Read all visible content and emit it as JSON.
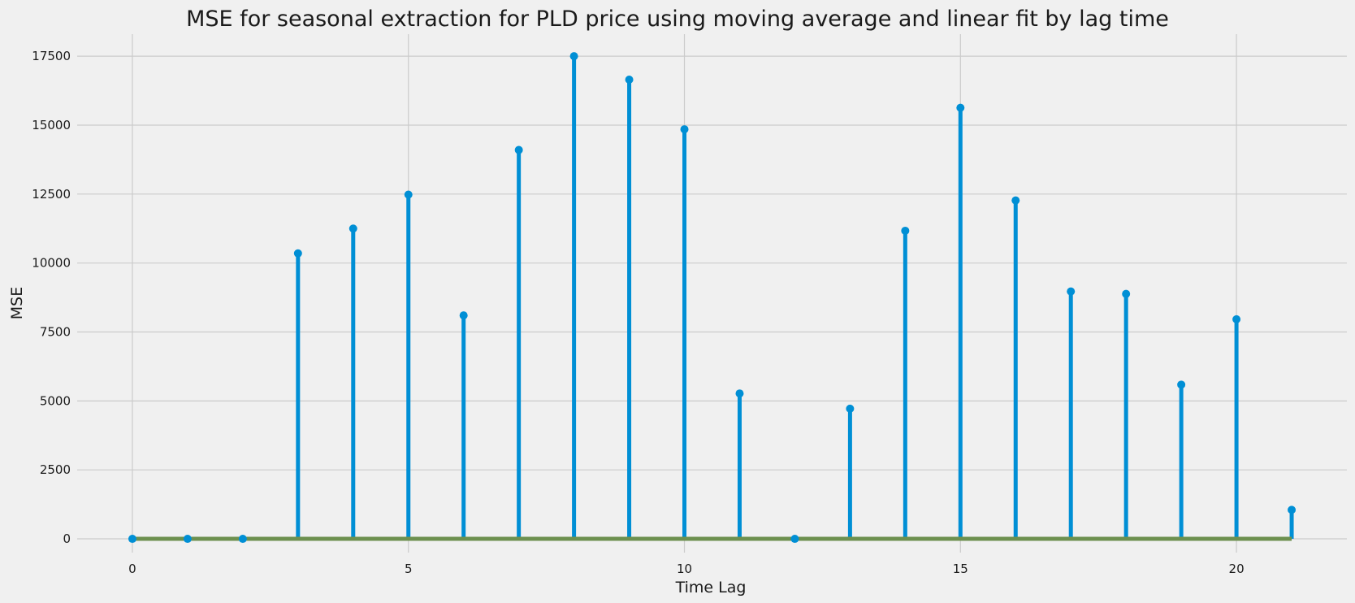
{
  "chart_data": {
    "type": "stem",
    "title": "MSE for seasonal extraction for PLD price using moving average and linear fit by lag time",
    "xlabel": "Time Lag",
    "ylabel": "MSE",
    "x": [
      0,
      1,
      2,
      3,
      4,
      5,
      6,
      7,
      8,
      9,
      10,
      11,
      12,
      13,
      14,
      15,
      16,
      17,
      18,
      19,
      20,
      21
    ],
    "values": [
      0,
      0,
      0,
      10350,
      11250,
      12480,
      8100,
      14100,
      17500,
      16650,
      14850,
      5270,
      0,
      4720,
      11170,
      15630,
      12270,
      8970,
      8880,
      5590,
      7960,
      1050
    ],
    "xlim": [
      -1,
      22
    ],
    "ylim": [
      -500,
      18300
    ],
    "xticks": [
      0,
      5,
      10,
      15,
      20
    ],
    "yticks": [
      0,
      2500,
      5000,
      7500,
      10000,
      12500,
      15000,
      17500
    ],
    "grid": true,
    "colors": {
      "stem": "#008fd5",
      "baseline": "#6d904f",
      "background": "#f0f0f0",
      "grid": "#cbcbcb"
    }
  }
}
